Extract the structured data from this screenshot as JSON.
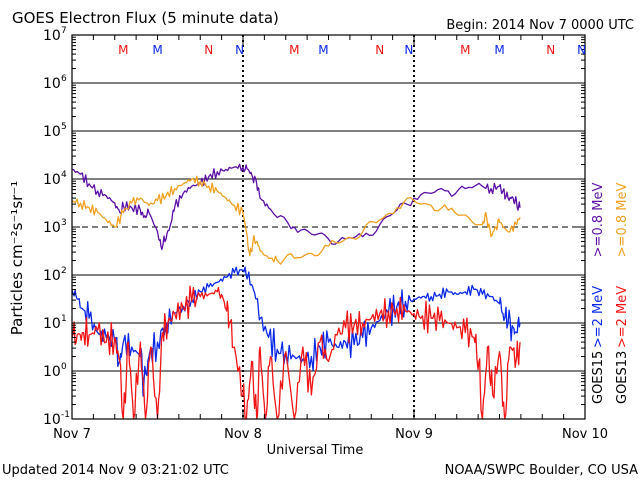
{
  "header": {
    "title": "GOES Electron Flux (5 minute data)",
    "begin": "Begin: 2014 Nov 7 0000 UTC"
  },
  "footer": {
    "updated": "Updated 2014 Nov  9 03:21:02 UTC",
    "source": "NOAA/SWPC Boulder, CO USA"
  },
  "colors": {
    "goes15_high": "#5b0fa6",
    "goes13_high": "#f0a020",
    "goes15_low": "#0a28e6",
    "goes13_low": "#f01414",
    "axis": "#000000"
  },
  "chart_data": {
    "type": "line",
    "title": "GOES Electron Flux (5 minute data)",
    "xlabel": "Universal Time",
    "ylabel": "Particles cm⁻²s⁻¹sr⁻¹",
    "xlim": [
      0,
      3
    ],
    "ylim_log10": [
      -1,
      7
    ],
    "x_ticks": [
      "Nov 7",
      "Nov 8",
      "Nov 9",
      "Nov 10"
    ],
    "y_ticks": [
      {
        "exp": 7,
        "base": "10",
        "sup": "7"
      },
      {
        "exp": 6,
        "base": "10",
        "sup": "6"
      },
      {
        "exp": 5,
        "base": "10",
        "sup": "5"
      },
      {
        "exp": 4,
        "base": "10",
        "sup": "4"
      },
      {
        "exp": 3,
        "base": "10",
        "sup": "3"
      },
      {
        "exp": 2,
        "base": "10",
        "sup": "2"
      },
      {
        "exp": 1,
        "base": "10",
        "sup": "1"
      },
      {
        "exp": 0,
        "base": "10",
        "sup": "0"
      },
      {
        "exp": -1,
        "base": "10",
        "sup": "-1"
      }
    ],
    "threshold_log10": 3,
    "day_markers": [
      {
        "day": 0.3,
        "label": "M",
        "sat": "GOES13"
      },
      {
        "day": 0.5,
        "label": "M",
        "sat": "GOES15"
      },
      {
        "day": 0.8,
        "label": "N",
        "sat": "GOES13"
      },
      {
        "day": 0.98,
        "label": "N",
        "sat": "GOES15"
      },
      {
        "day": 1.3,
        "label": "M",
        "sat": "GOES13"
      },
      {
        "day": 1.47,
        "label": "M",
        "sat": "GOES15"
      },
      {
        "day": 1.8,
        "label": "N",
        "sat": "GOES13"
      },
      {
        "day": 1.97,
        "label": "N",
        "sat": "GOES15"
      },
      {
        "day": 2.3,
        "label": "M",
        "sat": "GOES13"
      },
      {
        "day": 2.5,
        "label": "M",
        "sat": "GOES15"
      },
      {
        "day": 2.8,
        "label": "N",
        "sat": "GOES13"
      },
      {
        "day": 2.98,
        "label": "N",
        "sat": "GOES15"
      }
    ],
    "legend": [
      {
        "sat": "GOES15",
        "label": ">=0.8 MeV",
        "colorKey": "goes15_high"
      },
      {
        "sat": "GOES13",
        "label": ">=0.8 MeV",
        "colorKey": "goes13_high"
      },
      {
        "sat": "GOES15",
        "label": ">=2 MeV",
        "colorKey": "goes15_low"
      },
      {
        "sat": "GOES13",
        "label": ">=2 MeV",
        "colorKey": "goes13_low"
      }
    ],
    "series": [
      {
        "name": "GOES15 >=0.8 MeV",
        "colorKey": "goes15_high",
        "log10_values": [
          [
            0.0,
            4.2
          ],
          [
            0.05,
            4.1
          ],
          [
            0.1,
            3.9
          ],
          [
            0.15,
            3.75
          ],
          [
            0.2,
            3.65
          ],
          [
            0.25,
            3.5
          ],
          [
            0.28,
            3.3
          ],
          [
            0.3,
            3.45
          ],
          [
            0.35,
            3.4
          ],
          [
            0.4,
            3.35
          ],
          [
            0.42,
            3.2
          ],
          [
            0.45,
            3.3
          ],
          [
            0.5,
            2.9
          ],
          [
            0.52,
            2.6
          ],
          [
            0.55,
            2.75
          ],
          [
            0.58,
            3.1
          ],
          [
            0.6,
            3.4
          ],
          [
            0.65,
            3.7
          ],
          [
            0.7,
            3.85
          ],
          [
            0.75,
            3.9
          ],
          [
            0.8,
            4.05
          ],
          [
            0.85,
            4.15
          ],
          [
            0.9,
            4.2
          ],
          [
            0.95,
            4.25
          ],
          [
            1.0,
            4.25
          ],
          [
            1.03,
            4.2
          ],
          [
            1.05,
            4.1
          ],
          [
            1.08,
            3.9
          ],
          [
            1.1,
            3.6
          ],
          [
            1.15,
            3.4
          ],
          [
            1.2,
            3.2
          ],
          [
            1.3,
            3.0
          ],
          [
            1.4,
            2.85
          ],
          [
            1.5,
            2.75
          ],
          [
            1.6,
            2.75
          ],
          [
            1.7,
            2.8
          ],
          [
            1.8,
            3.05
          ],
          [
            1.9,
            3.35
          ],
          [
            2.0,
            3.6
          ],
          [
            2.1,
            3.7
          ],
          [
            2.2,
            3.75
          ],
          [
            2.3,
            3.8
          ],
          [
            2.4,
            3.85
          ],
          [
            2.45,
            3.8
          ],
          [
            2.5,
            3.85
          ],
          [
            2.52,
            3.75
          ],
          [
            2.55,
            3.6
          ],
          [
            2.58,
            3.6
          ],
          [
            2.6,
            3.5
          ],
          [
            2.62,
            3.4
          ]
        ]
      },
      {
        "name": "GOES13 >=0.8 MeV",
        "colorKey": "goes13_high",
        "log10_values": [
          [
            0.0,
            3.55
          ],
          [
            0.05,
            3.5
          ],
          [
            0.1,
            3.4
          ],
          [
            0.15,
            3.3
          ],
          [
            0.2,
            3.15
          ],
          [
            0.25,
            3.0
          ],
          [
            0.3,
            3.3
          ],
          [
            0.35,
            3.5
          ],
          [
            0.4,
            3.6
          ],
          [
            0.45,
            3.45
          ],
          [
            0.5,
            3.55
          ],
          [
            0.55,
            3.65
          ],
          [
            0.6,
            3.8
          ],
          [
            0.65,
            3.9
          ],
          [
            0.7,
            4.0
          ],
          [
            0.75,
            3.95
          ],
          [
            0.8,
            3.85
          ],
          [
            0.85,
            3.75
          ],
          [
            0.9,
            3.6
          ],
          [
            0.95,
            3.45
          ],
          [
            1.0,
            3.3
          ],
          [
            1.02,
            2.9
          ],
          [
            1.04,
            2.4
          ],
          [
            1.06,
            2.75
          ],
          [
            1.08,
            2.7
          ],
          [
            1.1,
            2.5
          ],
          [
            1.15,
            2.35
          ],
          [
            1.2,
            2.3
          ],
          [
            1.3,
            2.35
          ],
          [
            1.4,
            2.45
          ],
          [
            1.5,
            2.6
          ],
          [
            1.6,
            2.75
          ],
          [
            1.7,
            2.9
          ],
          [
            1.8,
            3.15
          ],
          [
            1.9,
            3.4
          ],
          [
            2.0,
            3.55
          ],
          [
            2.1,
            3.45
          ],
          [
            2.2,
            3.35
          ],
          [
            2.3,
            3.25
          ],
          [
            2.4,
            3.05
          ],
          [
            2.42,
            3.3
          ],
          [
            2.45,
            2.8
          ],
          [
            2.48,
            3.0
          ],
          [
            2.5,
            3.1
          ],
          [
            2.55,
            2.9
          ],
          [
            2.6,
            3.05
          ],
          [
            2.62,
            3.2
          ]
        ]
      },
      {
        "name": "GOES15 >=2 MeV",
        "colorKey": "goes15_low",
        "log10_values": [
          [
            0.0,
            1.7
          ],
          [
            0.03,
            1.5
          ],
          [
            0.06,
            1.3
          ],
          [
            0.1,
            1.1
          ],
          [
            0.15,
            0.8
          ],
          [
            0.2,
            0.7
          ],
          [
            0.25,
            0.6
          ],
          [
            0.28,
            0.2
          ],
          [
            0.3,
            0.6
          ],
          [
            0.35,
            0.5
          ],
          [
            0.4,
            0.3
          ],
          [
            0.42,
            -0.3
          ],
          [
            0.45,
            0.3
          ],
          [
            0.5,
            0.6
          ],
          [
            0.55,
            1.0
          ],
          [
            0.6,
            1.2
          ],
          [
            0.65,
            1.35
          ],
          [
            0.7,
            1.5
          ],
          [
            0.75,
            1.65
          ],
          [
            0.8,
            1.75
          ],
          [
            0.85,
            1.85
          ],
          [
            0.9,
            1.95
          ],
          [
            0.95,
            2.05
          ],
          [
            1.0,
            2.1
          ],
          [
            1.03,
            2.0
          ],
          [
            1.05,
            1.8
          ],
          [
            1.08,
            1.5
          ],
          [
            1.1,
            1.1
          ],
          [
            1.15,
            0.7
          ],
          [
            1.2,
            0.45
          ],
          [
            1.25,
            0.4
          ],
          [
            1.3,
            0.3
          ],
          [
            1.35,
            0.25
          ],
          [
            1.4,
            0.3
          ],
          [
            1.45,
            0.5
          ],
          [
            1.5,
            0.6
          ],
          [
            1.55,
            0.5
          ],
          [
            1.6,
            0.6
          ],
          [
            1.65,
            0.55
          ],
          [
            1.7,
            0.7
          ],
          [
            1.75,
            0.9
          ],
          [
            1.8,
            1.05
          ],
          [
            1.85,
            1.2
          ],
          [
            1.9,
            1.35
          ],
          [
            1.95,
            1.45
          ],
          [
            2.0,
            1.5
          ],
          [
            2.05,
            1.55
          ],
          [
            2.1,
            1.55
          ],
          [
            2.15,
            1.6
          ],
          [
            2.2,
            1.65
          ],
          [
            2.25,
            1.6
          ],
          [
            2.3,
            1.65
          ],
          [
            2.35,
            1.7
          ],
          [
            2.4,
            1.6
          ],
          [
            2.45,
            1.55
          ],
          [
            2.5,
            1.4
          ],
          [
            2.52,
            1.2
          ],
          [
            2.55,
            1.0
          ],
          [
            2.58,
            0.9
          ],
          [
            2.6,
            0.8
          ],
          [
            2.62,
            1.0
          ]
        ]
      },
      {
        "name": "GOES13 >=2 MeV",
        "colorKey": "goes13_low",
        "log10_values": [
          [
            0.0,
            0.7
          ],
          [
            0.03,
            0.75
          ],
          [
            0.06,
            0.8
          ],
          [
            0.1,
            0.75
          ],
          [
            0.15,
            0.85
          ],
          [
            0.2,
            0.6
          ],
          [
            0.25,
            0.7
          ],
          [
            0.28,
            0.2
          ],
          [
            0.3,
            -1.0
          ],
          [
            0.33,
            0.6
          ],
          [
            0.36,
            -1.0
          ],
          [
            0.4,
            0.6
          ],
          [
            0.43,
            -1.0
          ],
          [
            0.46,
            0.5
          ],
          [
            0.5,
            -1.0
          ],
          [
            0.53,
            0.8
          ],
          [
            0.56,
            1.0
          ],
          [
            0.6,
            1.2
          ],
          [
            0.65,
            1.3
          ],
          [
            0.7,
            1.45
          ],
          [
            0.75,
            1.55
          ],
          [
            0.8,
            1.6
          ],
          [
            0.85,
            1.65
          ],
          [
            0.88,
            1.55
          ],
          [
            0.9,
            1.3
          ],
          [
            0.92,
            1.0
          ],
          [
            0.95,
            0.5
          ],
          [
            1.0,
            -0.5
          ],
          [
            1.02,
            -1.0
          ],
          [
            1.05,
            0.2
          ],
          [
            1.08,
            -1.0
          ],
          [
            1.1,
            0.5
          ],
          [
            1.13,
            -1.0
          ],
          [
            1.16,
            0.3
          ],
          [
            1.2,
            -1.0
          ],
          [
            1.25,
            0.4
          ],
          [
            1.3,
            -1.0
          ],
          [
            1.35,
            0.5
          ],
          [
            1.4,
            -0.5
          ],
          [
            1.45,
            0.6
          ],
          [
            1.5,
            0.2
          ],
          [
            1.55,
            0.75
          ],
          [
            1.6,
            0.9
          ],
          [
            1.65,
            0.95
          ],
          [
            1.7,
            1.0
          ],
          [
            1.75,
            1.1
          ],
          [
            1.8,
            1.2
          ],
          [
            1.85,
            1.25
          ],
          [
            1.9,
            1.3
          ],
          [
            1.95,
            1.25
          ],
          [
            2.0,
            1.2
          ],
          [
            2.05,
            1.15
          ],
          [
            2.1,
            1.1
          ],
          [
            2.15,
            1.05
          ],
          [
            2.2,
            1.0
          ],
          [
            2.25,
            0.9
          ],
          [
            2.3,
            0.8
          ],
          [
            2.35,
            0.7
          ],
          [
            2.38,
            0.2
          ],
          [
            2.4,
            -1.0
          ],
          [
            2.43,
            0.5
          ],
          [
            2.46,
            -0.5
          ],
          [
            2.5,
            0.4
          ],
          [
            2.53,
            -1.0
          ],
          [
            2.56,
            0.5
          ],
          [
            2.6,
            0.3
          ],
          [
            2.62,
            0.6
          ]
        ]
      }
    ]
  }
}
